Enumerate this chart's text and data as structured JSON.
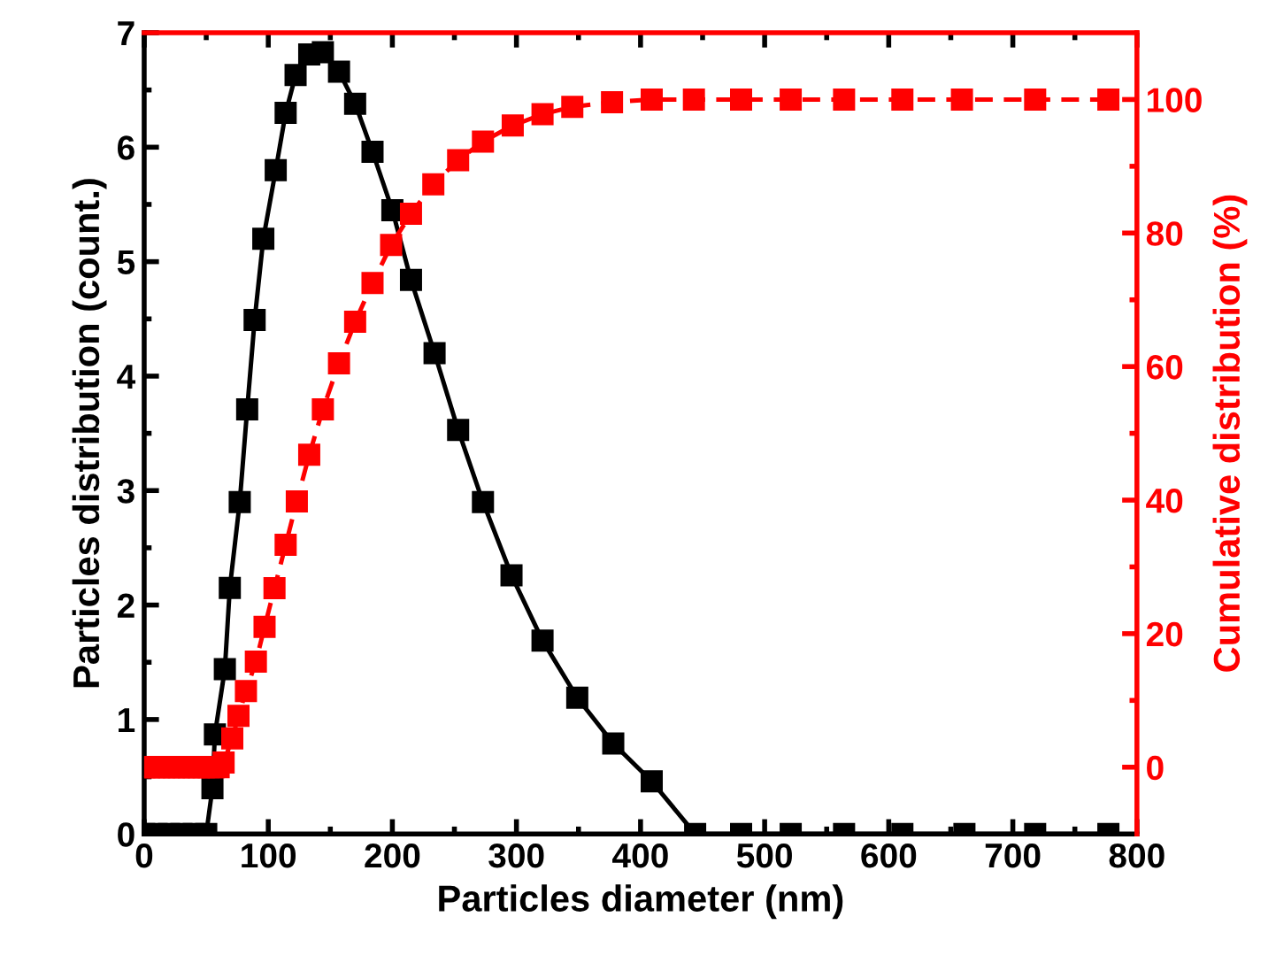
{
  "chart_data": {
    "type": "line",
    "xlabel": "Particles diameter (nm)",
    "ylabel": "Particles distribution (count.)",
    "y2label": "Cumulative distribution (%)",
    "xlim": [
      0,
      800
    ],
    "xticks": [
      0,
      100,
      200,
      300,
      400,
      500,
      600,
      700,
      800
    ],
    "ylim": [
      0,
      7
    ],
    "yticks": [
      0,
      1,
      2,
      3,
      4,
      5,
      6,
      7
    ],
    "y2lim": [
      -10,
      110
    ],
    "y2ticks": [
      0,
      20,
      40,
      60,
      80,
      100
    ],
    "marker": "square",
    "grid": false,
    "legend": false,
    "series": [
      {
        "color": "#000000",
        "line_style": "solid",
        "x": [
          0,
          10,
          20,
          30,
          40,
          50,
          55,
          57,
          65,
          69,
          77,
          83,
          89,
          96,
          106,
          114,
          122,
          133,
          144,
          157,
          170,
          184,
          200,
          215,
          234,
          253,
          273,
          296,
          321,
          349,
          378,
          409,
          444,
          481,
          521,
          564,
          611,
          661,
          718,
          777
        ],
        "values": [
          0,
          0,
          0,
          0,
          0,
          0,
          0.4,
          0.87,
          1.44,
          2.15,
          2.9,
          3.71,
          4.49,
          5.2,
          5.8,
          6.3,
          6.63,
          6.81,
          6.83,
          6.66,
          6.38,
          5.96,
          5.45,
          4.84,
          4.2,
          3.53,
          2.9,
          2.26,
          1.69,
          1.19,
          0.79,
          0.46,
          0,
          0,
          0,
          0,
          0,
          0,
          0,
          0
        ]
      },
      {
        "color": "#ff0000",
        "axis": "y2",
        "line_style": "dashed",
        "x": [
          0,
          4,
          8,
          12,
          16,
          20,
          24,
          28,
          32,
          36,
          40,
          44,
          48,
          52,
          56,
          60,
          64,
          71,
          76,
          82,
          90,
          97,
          105,
          114,
          123,
          133,
          144,
          157,
          170,
          184,
          199,
          215,
          233,
          253,
          273,
          297,
          321,
          345,
          377,
          409,
          443,
          481,
          521,
          564,
          611,
          659,
          718,
          777
        ],
        "values": [
          0,
          0,
          0,
          0,
          0,
          0,
          0,
          0,
          0,
          0,
          0,
          0,
          0,
          0,
          0,
          0,
          0.7,
          4.3,
          7.7,
          11.4,
          15.8,
          21,
          26.8,
          33.3,
          39.8,
          46.8,
          53.6,
          60.5,
          66.7,
          72.5,
          78.2,
          82.9,
          87.3,
          90.9,
          93.7,
          96.1,
          97.8,
          98.9,
          99.6,
          100,
          100,
          100,
          100,
          100,
          100,
          100,
          100,
          100
        ]
      }
    ]
  }
}
